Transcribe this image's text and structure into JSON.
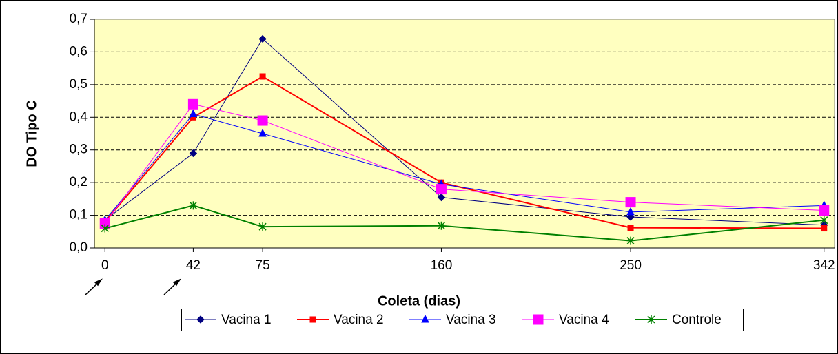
{
  "chart_data": {
    "type": "line",
    "x_label": "Coleta (dias)",
    "y_label": "DO Tipo C",
    "x": [
      0,
      42,
      75,
      160,
      250,
      342
    ],
    "xlim": [
      -5,
      347
    ],
    "xticks": [
      0,
      42,
      75,
      160,
      250,
      342
    ],
    "ylim": [
      0,
      0.7
    ],
    "yticks": [
      {
        "value": 0,
        "label": "0,0"
      },
      {
        "value": 0.1,
        "label": "0,1"
      },
      {
        "value": 0.2,
        "label": "0,2"
      },
      {
        "value": 0.3,
        "label": "0,3"
      },
      {
        "value": 0.4,
        "label": "0,4"
      },
      {
        "value": 0.5,
        "label": "0,5"
      },
      {
        "value": 0.6,
        "label": "0,6"
      },
      {
        "value": 0.7,
        "label": "0,7"
      }
    ],
    "grid": true,
    "legend": "bottom",
    "series": [
      {
        "name": "Vacina 1",
        "color": "#000080",
        "marker": "diamond",
        "values": [
          0.085,
          0.29,
          0.64,
          0.155,
          0.095,
          0.07
        ]
      },
      {
        "name": "Vacina 2",
        "color": "#ff0000",
        "marker": "square",
        "values": [
          0.08,
          0.4,
          0.525,
          0.2,
          0.062,
          0.06
        ]
      },
      {
        "name": "Vacina 3",
        "color": "#0000ff",
        "marker": "triangle",
        "values": [
          0.085,
          0.41,
          0.35,
          0.195,
          0.11,
          0.13
        ]
      },
      {
        "name": "Vacina 4",
        "color": "#ff00ff",
        "marker": "bigsquare",
        "values": [
          0.075,
          0.44,
          0.39,
          0.18,
          0.14,
          0.115
        ]
      },
      {
        "name": "Controle",
        "color": "#008000",
        "marker": "star",
        "values": [
          0.06,
          0.13,
          0.065,
          0.068,
          0.022,
          0.085
        ]
      }
    ]
  }
}
